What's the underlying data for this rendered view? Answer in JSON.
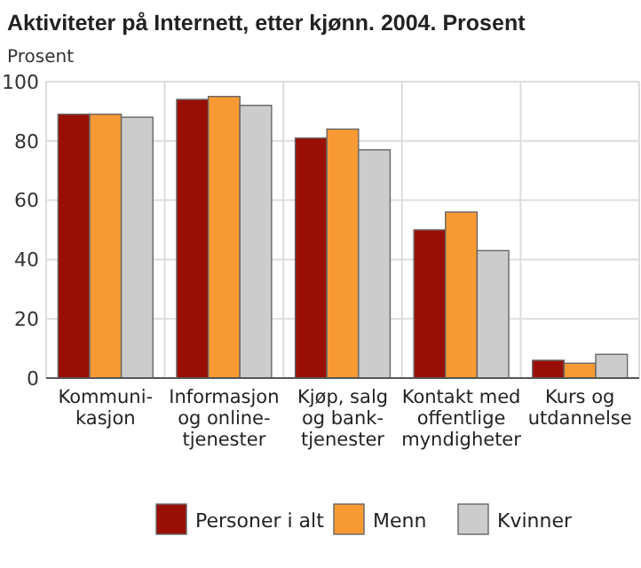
{
  "chart_data": {
    "type": "bar",
    "title": "Aktiviteter på Internett, etter kjønn. 2004. Prosent",
    "ylabel": "Prosent",
    "categories": [
      "Kommuni-\nkasjon",
      "Informasjon\nog online-\ntjenester",
      "Kjøp, salg\nog bank-\ntjenester",
      "Kontakt med\noffentlige\nmyndigheter",
      "Kurs og\nutdannelse"
    ],
    "series": [
      {
        "name": "Personer i alt",
        "color": "#990f05",
        "values": [
          89,
          94,
          81,
          50,
          6
        ]
      },
      {
        "name": "Menn",
        "color": "#f89a33",
        "values": [
          89,
          95,
          84,
          56,
          5
        ]
      },
      {
        "name": "Kvinner",
        "color": "#cccccc",
        "values": [
          88,
          92,
          77,
          43,
          8
        ]
      }
    ],
    "ylim": [
      0,
      100
    ],
    "yticks": [
      0,
      20,
      40,
      60,
      80,
      100
    ],
    "grid": true,
    "legend": "bottom"
  }
}
